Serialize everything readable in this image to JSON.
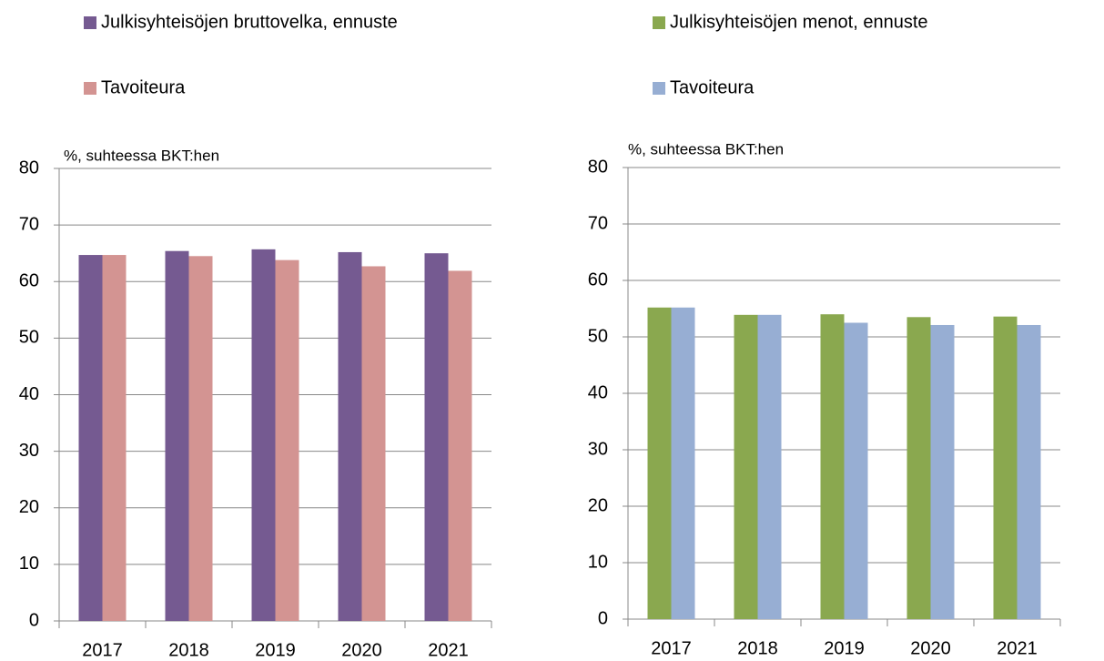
{
  "chart_data": [
    {
      "type": "bar",
      "y_axis_label": "%, suhteessa BKT:hen",
      "categories": [
        "2017",
        "2018",
        "2019",
        "2020",
        "2021"
      ],
      "series": [
        {
          "name": "Julkisyhteisöjen bruttovelka, ennuste",
          "color": "#755a91",
          "values": [
            64.7,
            65.4,
            65.7,
            65.2,
            65.0
          ]
        },
        {
          "name": "Tavoiteura",
          "color": "#d39492",
          "values": [
            64.7,
            64.5,
            63.8,
            62.7,
            61.9
          ]
        }
      ],
      "ylim": [
        0,
        80
      ],
      "yticks": [
        0,
        10,
        20,
        30,
        40,
        50,
        60,
        70,
        80
      ],
      "grid": true
    },
    {
      "type": "bar",
      "y_axis_label": "%, suhteessa BKT:hen",
      "categories": [
        "2017",
        "2018",
        "2019",
        "2020",
        "2021"
      ],
      "series": [
        {
          "name": "Julkisyhteisöjen menot, ennuste",
          "color": "#8aa84f",
          "values": [
            55.2,
            53.9,
            54.0,
            53.5,
            53.6
          ]
        },
        {
          "name": "Tavoiteura",
          "color": "#97aed3",
          "values": [
            55.2,
            53.9,
            52.5,
            52.1,
            52.1
          ]
        }
      ],
      "ylim": [
        0,
        80
      ],
      "yticks": [
        0,
        10,
        20,
        30,
        40,
        50,
        60,
        70,
        80
      ],
      "grid": true
    }
  ]
}
